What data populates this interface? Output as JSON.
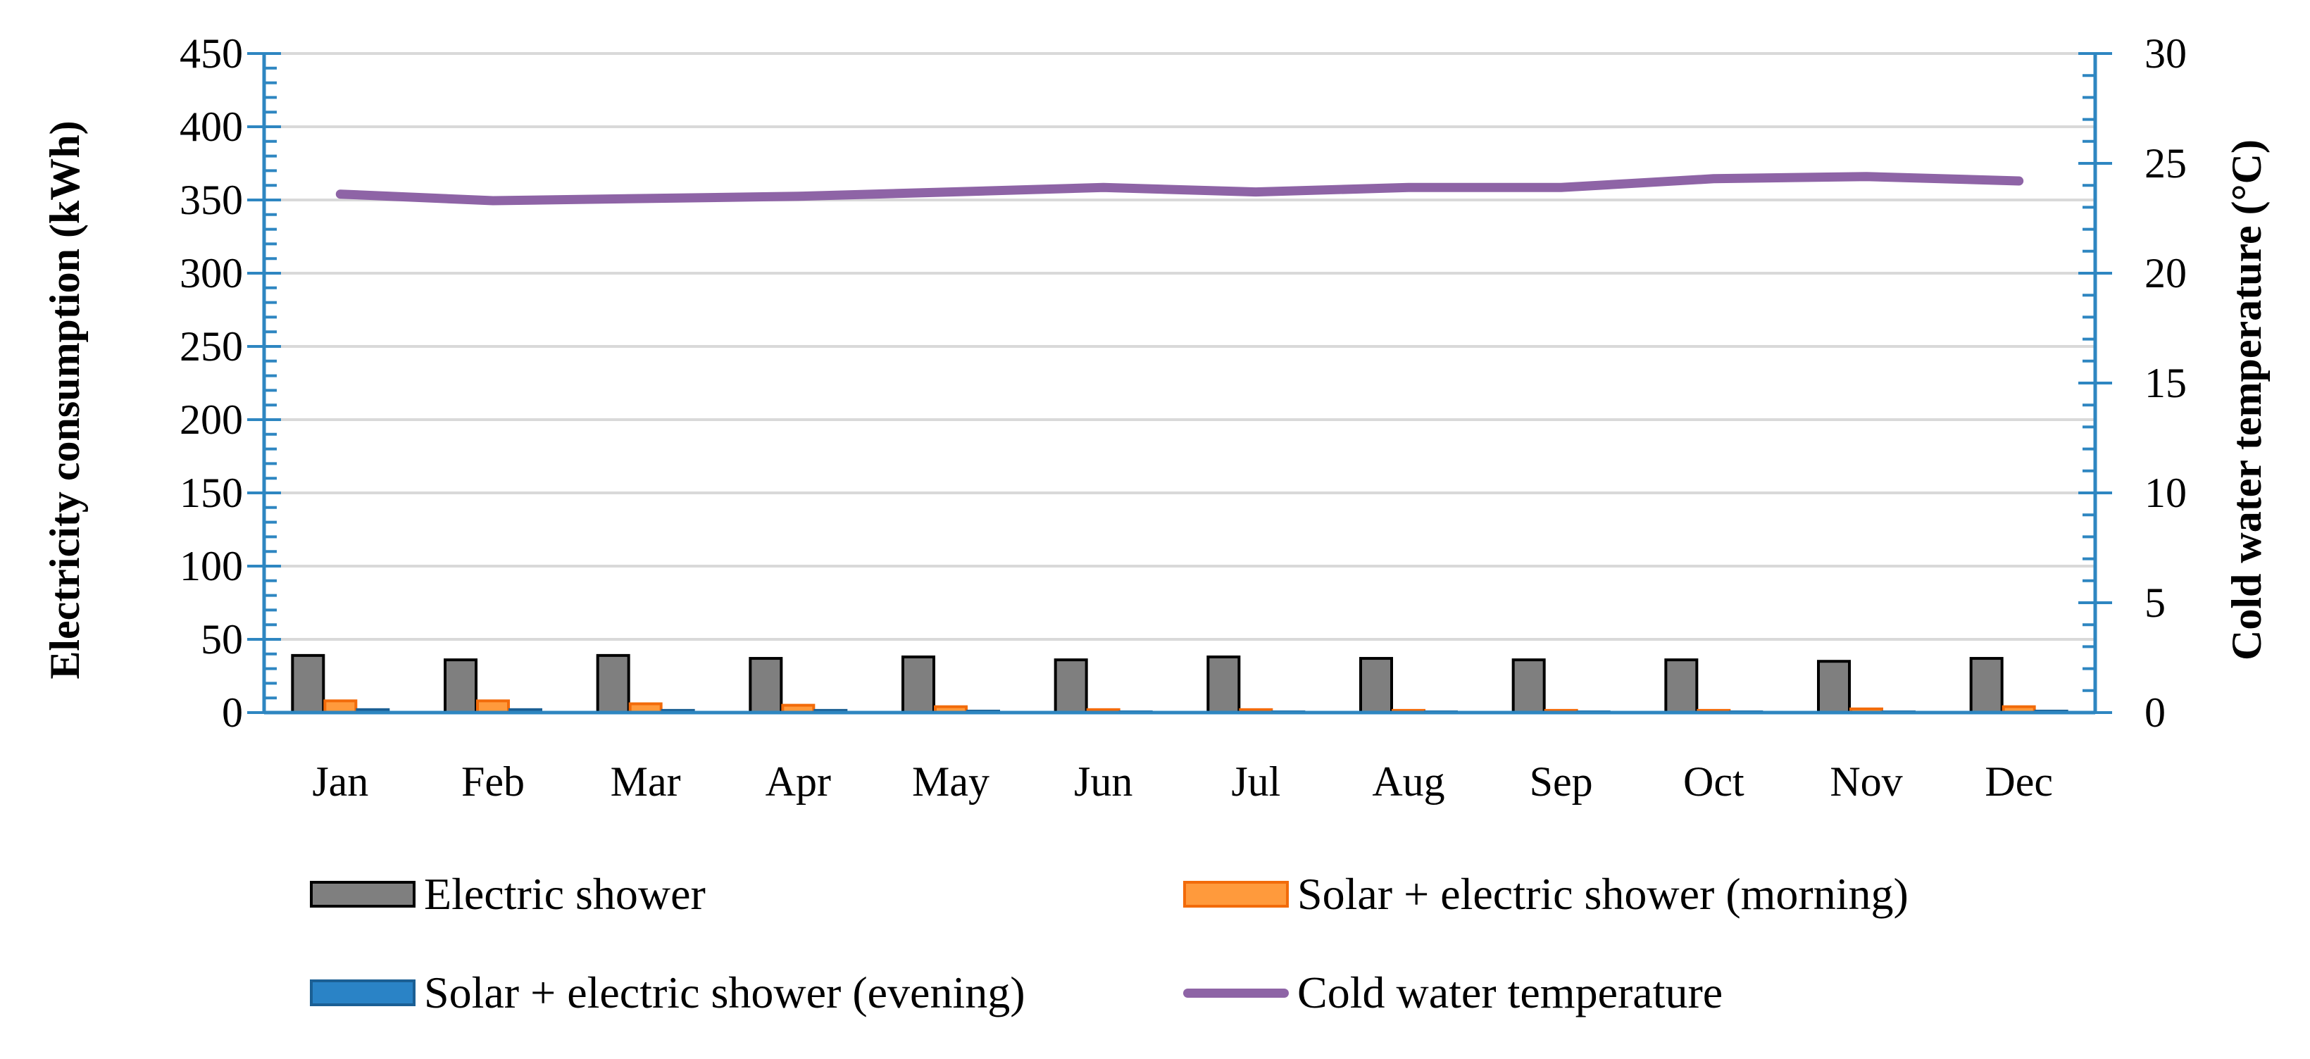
{
  "chart_data": {
    "type": "bar",
    "categories": [
      "Jan",
      "Feb",
      "Mar",
      "Apr",
      "May",
      "Jun",
      "Jul",
      "Aug",
      "Sep",
      "Oct",
      "Nov",
      "Dec"
    ],
    "series": [
      {
        "name": "Electric shower",
        "type": "bar",
        "axis": "left",
        "color": "#7f7f7f",
        "edge": "#000000",
        "values": [
          39,
          36,
          39,
          37,
          38,
          36,
          38,
          37,
          36,
          36,
          35,
          37
        ]
      },
      {
        "name": "Solar + electric shower (morning)",
        "type": "bar",
        "axis": "left",
        "color": "#ff9a3c",
        "edge": "#f26b0a",
        "values": [
          8,
          8,
          6,
          5,
          4,
          2,
          2,
          1.5,
          1.5,
          1.5,
          2.5,
          4
        ]
      },
      {
        "name": "Solar + electric shower (evening)",
        "type": "bar",
        "axis": "left",
        "color": "#2a83c6",
        "edge": "#1b5f94",
        "values": [
          2,
          2,
          1.5,
          1.5,
          1,
          0.5,
          0.5,
          0.5,
          0.5,
          0.5,
          0.5,
          1
        ]
      },
      {
        "name": "Cold water temperature",
        "type": "line",
        "axis": "right",
        "color": "#8e64a6",
        "values": [
          23.6,
          23.3,
          23.4,
          23.5,
          23.7,
          23.9,
          23.7,
          23.9,
          23.9,
          24.3,
          24.4,
          24.2
        ]
      }
    ],
    "y_left": {
      "label": "Electricity consumption (kWh)",
      "min": 0,
      "max": 450,
      "ticks": [
        0,
        50,
        100,
        150,
        200,
        250,
        300,
        350,
        400,
        450
      ]
    },
    "y_right": {
      "label": "Cold water temperature (°C)",
      "min": 0,
      "max": 30,
      "ticks": [
        0,
        5,
        10,
        15,
        20,
        25,
        30
      ]
    },
    "grid": true,
    "legend_position": "bottom",
    "axis_color": "#2e86c1",
    "grid_color": "#d9d9d9"
  }
}
